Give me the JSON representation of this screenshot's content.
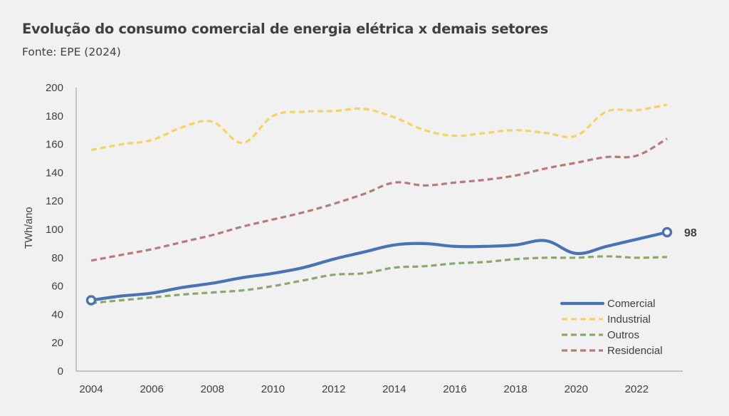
{
  "chart_data": {
    "type": "line",
    "title": "Evolução do consumo comercial de energia elétrica x demais setores",
    "subtitle": "Fonte: EPE (2024)",
    "xlabel": "",
    "ylabel": "TWh/ano",
    "x": [
      2004,
      2005,
      2006,
      2007,
      2008,
      2009,
      2010,
      2011,
      2012,
      2013,
      2014,
      2015,
      2016,
      2017,
      2018,
      2019,
      2020,
      2021,
      2022,
      2023
    ],
    "xticks": [
      "2004",
      "2006",
      "2008",
      "2010",
      "2012",
      "2014",
      "2016",
      "2018",
      "2020",
      "2022"
    ],
    "xtick_values": [
      2004,
      2006,
      2008,
      2010,
      2012,
      2014,
      2016,
      2018,
      2020,
      2022
    ],
    "yticks": [
      "0",
      "20",
      "40",
      "60",
      "80",
      "100",
      "120",
      "140",
      "160",
      "180",
      "200"
    ],
    "ytick_values": [
      0,
      20,
      40,
      60,
      80,
      100,
      120,
      140,
      160,
      180,
      200
    ],
    "ylim": [
      0,
      200
    ],
    "xlim": [
      2003.5,
      2024
    ],
    "grid": false,
    "legend_position": "bottom-right",
    "series": [
      {
        "name": "Comercial",
        "color": "#4a73b5",
        "style": "solid",
        "values": [
          50,
          53,
          55,
          59,
          62,
          66,
          69,
          73,
          79,
          84,
          89,
          90,
          88,
          88,
          89,
          92,
          83,
          88,
          93,
          98
        ],
        "end_label": "98",
        "markers_at": [
          2004,
          2023
        ]
      },
      {
        "name": "Industrial",
        "color": "#f5d266",
        "style": "dashed",
        "values": [
          156,
          160,
          163,
          172,
          176,
          161,
          180,
          183,
          183.5,
          185,
          179,
          170,
          166,
          168,
          170,
          168,
          166,
          183,
          184,
          188
        ]
      },
      {
        "name": "Outros",
        "color": "#8aa86b",
        "style": "dashed",
        "values": [
          48,
          50,
          52,
          54,
          55.5,
          57,
          60,
          64,
          68,
          69,
          73,
          74,
          76,
          77,
          79,
          80,
          80,
          81,
          80,
          80.5
        ]
      },
      {
        "name": "Residencial",
        "color": "#b87a78",
        "style": "dashed",
        "values": [
          78,
          82,
          86,
          91,
          96,
          102,
          107,
          112,
          118,
          125,
          133,
          131,
          133,
          135,
          138,
          143,
          147,
          151,
          152,
          164
        ]
      }
    ]
  }
}
